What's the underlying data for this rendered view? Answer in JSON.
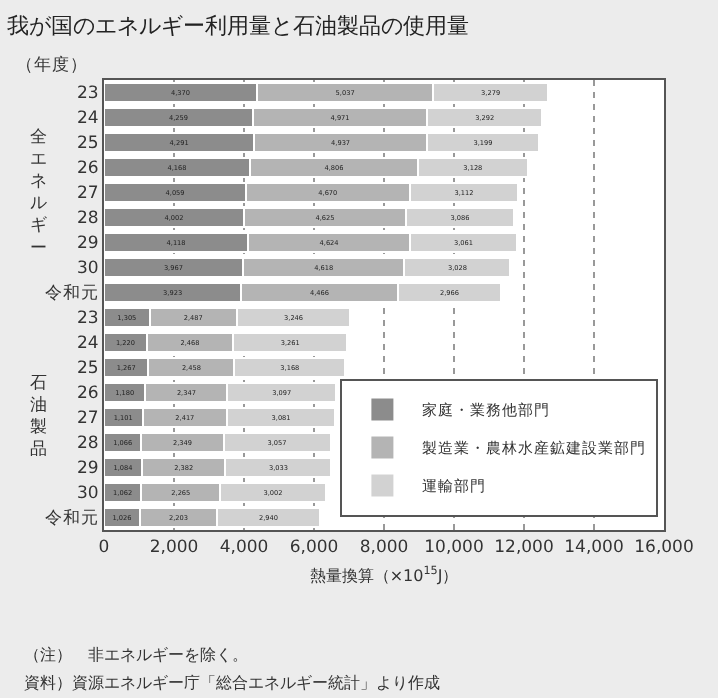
{
  "chart_data": {
    "type": "bar",
    "orientation": "horizontal",
    "stacked": true,
    "title": "我が国のエネルギー利用量と石油製品の使用量",
    "xlabel": "熱量換算（×10$^{15}$J）",
    "categories": [
      "23",
      "24",
      "25",
      "26",
      "27",
      "28",
      "29",
      "30",
      "令和元",
      "23",
      "24",
      "25",
      "26",
      "27",
      "28",
      "29",
      "30",
      "令和元"
    ],
    "series": [
      {
        "name": "家庭・業務他部門",
        "color": "#8c8c8c",
        "values": [
          4370,
          4259,
          4291,
          4168,
          4059,
          4002,
          4118,
          3967,
          3923,
          1305,
          1220,
          1267,
          1180,
          1101,
          1066,
          1084,
          1062,
          1026
        ],
        "value_labels": [
          "4,370",
          "4,259",
          "4,291",
          "4,168",
          "4,059",
          "4,002",
          "4,118",
          "3,967",
          "3,923",
          "1,305",
          "1,220",
          "1,267",
          "1,180",
          "1,101",
          "1,066",
          "1,084",
          "1,062",
          "1,026"
        ]
      },
      {
        "name": "製造業・農林水産鉱建設業部門",
        "color": "#b4b4b4",
        "values": [
          5037,
          4971,
          4937,
          4806,
          4670,
          4625,
          4624,
          4618,
          4466,
          2487,
          2468,
          2458,
          2347,
          2417,
          2349,
          2382,
          2265,
          2203
        ],
        "value_labels": [
          "5,037",
          "4,971",
          "4,937",
          "4,806",
          "4,670",
          "4,625",
          "4,624",
          "4,618",
          "4,466",
          "2,487",
          "2,468",
          "2,458",
          "2,347",
          "2,417",
          "2,349",
          "2,382",
          "2,265",
          "2,203"
        ]
      },
      {
        "name": "運輸部門",
        "color": "#d2d2d2",
        "values": [
          3279,
          3292,
          3199,
          3128,
          3112,
          3086,
          3061,
          3028,
          2966,
          3246,
          3261,
          3168,
          3097,
          3081,
          3057,
          3033,
          3002,
          2940
        ],
        "value_labels": [
          "3,279",
          "3,292",
          "3,199",
          "3,128",
          "3,112",
          "3,086",
          "3,061",
          "3,028",
          "2,966",
          "3,246",
          "3,261",
          "3,168",
          "3,097",
          "3,081",
          "3,057",
          "3,033",
          "3,002",
          "2,940"
        ]
      }
    ],
    "xlim": [
      0,
      16000
    ],
    "xticks": [
      {
        "value": 0,
        "label": "0"
      },
      {
        "value": 2000,
        "label": "2,000"
      },
      {
        "value": 4000,
        "label": "4,000"
      },
      {
        "value": 6000,
        "label": "6,000"
      },
      {
        "value": 8000,
        "label": "8,000"
      },
      {
        "value": 10000,
        "label": "10,000"
      },
      {
        "value": 12000,
        "label": "12,000"
      },
      {
        "value": 14000,
        "label": "14,000"
      },
      {
        "value": 16000,
        "label": "16,000"
      }
    ],
    "grid": "x",
    "legend": "bottom right",
    "annotations": [
      "（年度）",
      "全エネルギー",
      "石油製品",
      "（注）　非エネルギーを除く。",
      "資料）資源エネルギー庁「総合エネルギー統計」より作成"
    ]
  }
}
